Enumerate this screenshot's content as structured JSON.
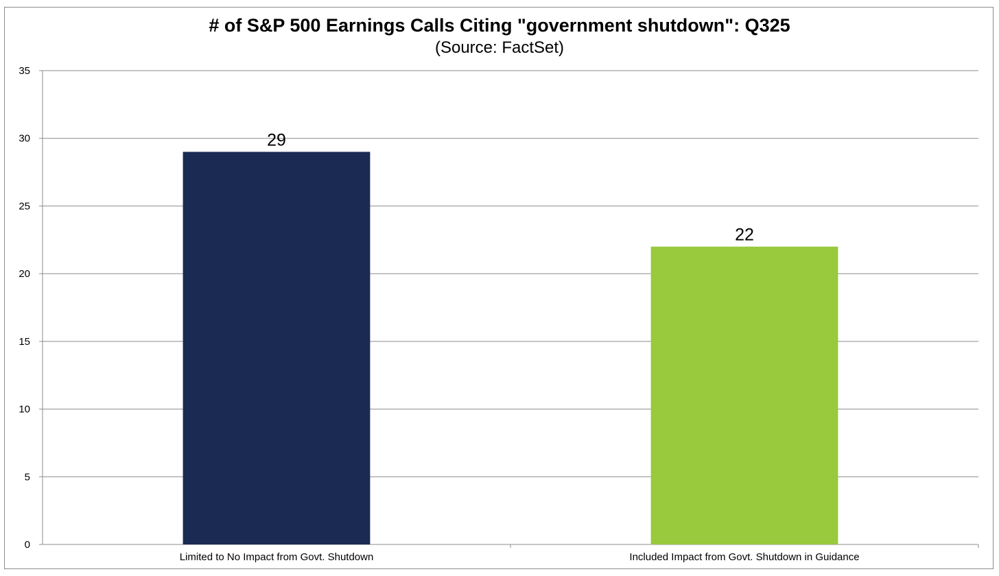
{
  "chart_data": {
    "type": "bar",
    "title": "# of S&P 500 Earnings Calls Citing \"government shutdown\": Q325",
    "subtitle": "(Source: FactSet)",
    "categories": [
      "Limited to No Impact from Govt. Shutdown",
      "Included Impact from Govt. Shutdown in Guidance"
    ],
    "values": [
      29,
      22
    ],
    "colors": [
      "#1a2a52",
      "#99c93c"
    ],
    "data_labels": [
      "29",
      "22"
    ],
    "xlabel": "",
    "ylabel": "",
    "ylim": [
      0,
      35
    ],
    "yticks": [
      0,
      5,
      10,
      15,
      20,
      25,
      30,
      35
    ],
    "grid": true,
    "legend": "none"
  }
}
